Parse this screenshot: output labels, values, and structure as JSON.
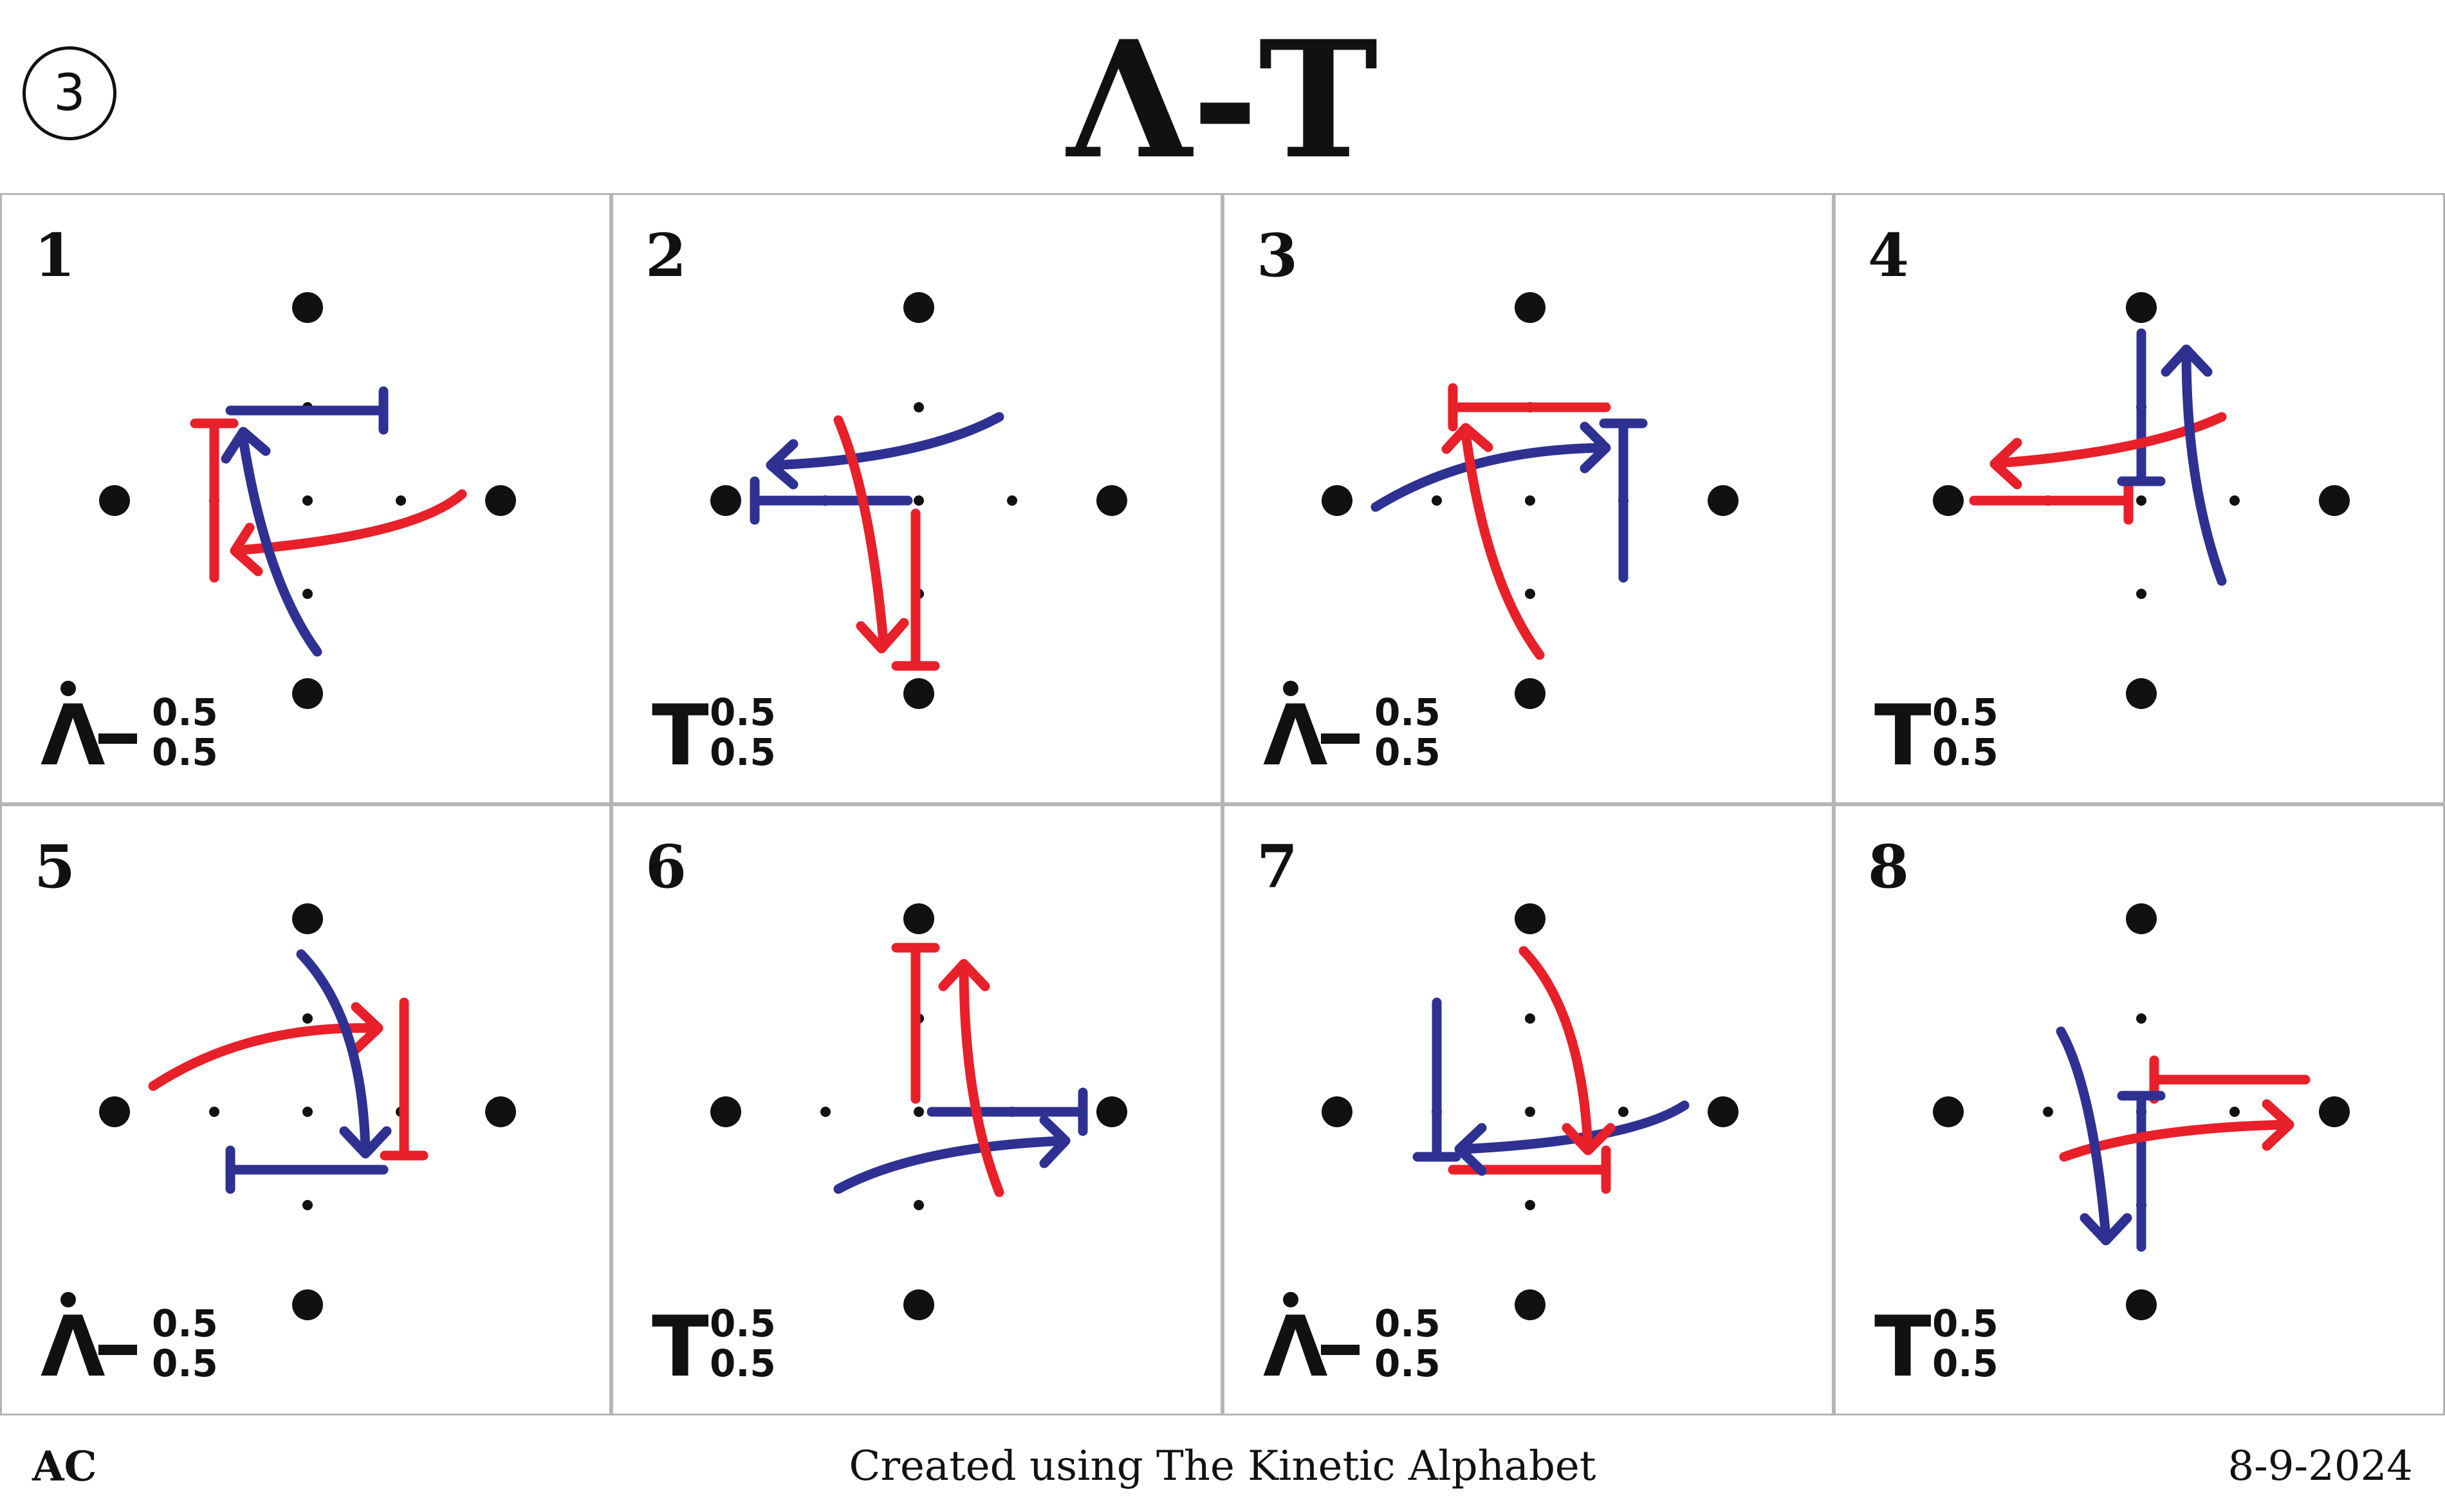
{
  "header": {
    "sequence_number": "3",
    "title": "Λ-T"
  },
  "colors": {
    "red": "#e8202a",
    "blue": "#2e3192",
    "dot": "#111111"
  },
  "cells": [
    {
      "number": "1",
      "symbol": "Λ",
      "dashed": true,
      "top_value": "0.5",
      "bottom_value": "0.5"
    },
    {
      "number": "2",
      "symbol": "T",
      "dashed": false,
      "top_value": "0.5",
      "bottom_value": "0.5"
    },
    {
      "number": "3",
      "symbol": "Λ",
      "dashed": true,
      "top_value": "0.5",
      "bottom_value": "0.5"
    },
    {
      "number": "4",
      "symbol": "T",
      "dashed": false,
      "top_value": "0.5",
      "bottom_value": "0.5"
    },
    {
      "number": "5",
      "symbol": "Λ",
      "dashed": true,
      "top_value": "0.5",
      "bottom_value": "0.5"
    },
    {
      "number": "6",
      "symbol": "T",
      "dashed": false,
      "top_value": "0.5",
      "bottom_value": "0.5"
    },
    {
      "number": "7",
      "symbol": "Λ",
      "dashed": true,
      "top_value": "0.5",
      "bottom_value": "0.5"
    },
    {
      "number": "8",
      "symbol": "T",
      "dashed": false,
      "top_value": "0.5",
      "bottom_value": "0.5"
    }
  ],
  "footer": {
    "left": "AC",
    "center": "Created using The Kinetic Alphabet",
    "right": "8-9-2024"
  }
}
